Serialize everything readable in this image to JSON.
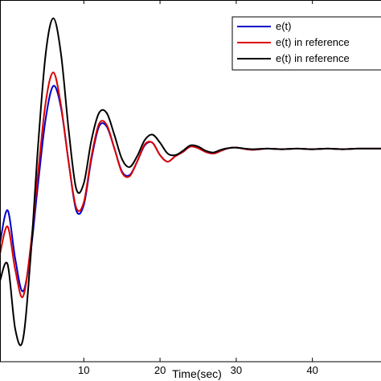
{
  "chart_data": {
    "type": "line",
    "title": "",
    "xlabel": "Time(sec)",
    "ylabel": "",
    "xlim": [
      -1,
      49
    ],
    "ylim": [
      -3.4,
      3.2
    ],
    "xticks": [
      10,
      20,
      30,
      40
    ],
    "grid": false,
    "legend_position": "top-right",
    "series": [
      {
        "name": "e(t)",
        "color": "#0000cc",
        "x": [
          -1,
          0,
          1,
          2,
          3,
          4,
          5,
          6,
          7,
          8,
          9,
          10,
          11,
          12,
          13,
          14,
          15,
          16,
          17,
          18,
          19,
          20,
          21,
          22,
          23,
          24,
          25,
          26,
          27,
          28,
          29,
          30,
          32,
          34,
          36,
          38,
          40,
          42,
          44,
          46,
          49
        ],
        "y": [
          -1.2,
          -0.6,
          -1.5,
          -2.1,
          -1.4,
          -0.1,
          1.1,
          1.7,
          1.3,
          0.3,
          -0.6,
          -0.5,
          0.35,
          0.95,
          0.95,
          0.55,
          0.12,
          0.05,
          0.3,
          0.6,
          0.65,
          0.42,
          0.3,
          0.4,
          0.48,
          0.58,
          0.55,
          0.48,
          0.45,
          0.5,
          0.55,
          0.56,
          0.52,
          0.54,
          0.53,
          0.54,
          0.53,
          0.54,
          0.53,
          0.54,
          0.54
        ]
      },
      {
        "name": "e(t) in reference",
        "color": "#dd0000",
        "x": [
          -1,
          0,
          1,
          2,
          3,
          4,
          5,
          6,
          7,
          8,
          9,
          10,
          11,
          12,
          13,
          14,
          15,
          16,
          17,
          18,
          19,
          20,
          21,
          22,
          23,
          24,
          25,
          26,
          27,
          28,
          29,
          30,
          32,
          34,
          36,
          38,
          40,
          42,
          44,
          46,
          49
        ],
        "y": [
          -1.4,
          -0.9,
          -1.7,
          -2.2,
          -1.3,
          0.1,
          1.4,
          1.95,
          1.35,
          0.3,
          -0.55,
          -0.45,
          0.4,
          1.0,
          0.98,
          0.55,
          0.1,
          0.03,
          0.3,
          0.62,
          0.65,
          0.42,
          0.3,
          0.4,
          0.48,
          0.58,
          0.55,
          0.48,
          0.45,
          0.5,
          0.55,
          0.56,
          0.52,
          0.54,
          0.53,
          0.54,
          0.53,
          0.54,
          0.53,
          0.54,
          0.54
        ]
      },
      {
        "name": "e(t) in reference",
        "color": "#000000",
        "x": [
          -1,
          0,
          1,
          2,
          3,
          4,
          5,
          6,
          7,
          8,
          9,
          10,
          11,
          12,
          13,
          14,
          15,
          16,
          17,
          18,
          19,
          20,
          21,
          22,
          23,
          24,
          25,
          26,
          27,
          28,
          29,
          30,
          32,
          34,
          36,
          38,
          40,
          42,
          44,
          46,
          49
        ],
        "y": [
          -1.9,
          -1.6,
          -2.8,
          -3.0,
          -1.5,
          0.6,
          2.3,
          2.95,
          2.3,
          0.9,
          -0.2,
          -0.1,
          0.7,
          1.2,
          1.2,
          0.8,
          0.35,
          0.2,
          0.4,
          0.7,
          0.8,
          0.65,
          0.45,
          0.42,
          0.5,
          0.6,
          0.58,
          0.5,
          0.47,
          0.52,
          0.55,
          0.56,
          0.53,
          0.54,
          0.53,
          0.54,
          0.53,
          0.54,
          0.53,
          0.54,
          0.54
        ]
      }
    ]
  }
}
